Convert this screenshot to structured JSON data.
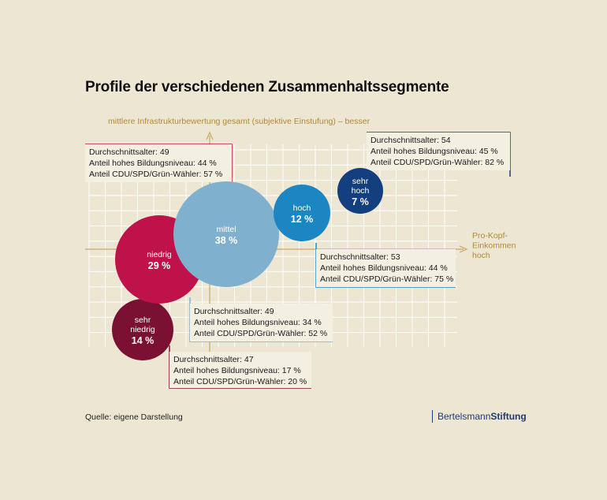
{
  "title": "Profile der verschiedenen Zusammenhaltssegmente",
  "source": "Quelle: eigene Darstellung",
  "brand": {
    "part1": "Bertelsmann",
    "part2": "Stiftung"
  },
  "colors": {
    "background": "#ece6d3",
    "grid": "#ffffff",
    "axis": "#c9a765",
    "axis_text": "#b08a3a",
    "sehr_niedrig": "#7a1133",
    "niedrig": "#c0124a",
    "mittel": "#7fb1cf",
    "hoch": "#1b86c2",
    "sehr_hoch": "#143f7e"
  },
  "chart_data": {
    "type": "scatter",
    "title": "Profile der verschiedenen Zusammenhaltssegmente",
    "xlabel": "Pro-Kopf-Einkommen hoch",
    "ylabel": "mittlere Infrastrukturbewertung gesamt (subjektive Einstufung) – besser",
    "grid": true,
    "segments": [
      {
        "label": "sehr niedrig",
        "value": "14 %",
        "share": 14,
        "info": [
          "Durchschnittsalter: 47",
          "Anteil hohes Bildungsniveau: 17 %",
          "Anteil CDU/SPD/Grün-Wähler: 20 %"
        ]
      },
      {
        "label": "niedrig",
        "value": "29 %",
        "share": 29,
        "info": [
          "Durchschnittsalter: 49",
          "Anteil hohes Bildungsniveau: 44 %",
          "Anteil CDU/SPD/Grün-Wähler: 57 %"
        ]
      },
      {
        "label": "mittel",
        "value": "38 %",
        "share": 38,
        "info": [
          "Durchschnittsalter: 49",
          "Anteil hohes Bildungsniveau: 34 %",
          "Anteil CDU/SPD/Grün-Wähler: 52 %"
        ]
      },
      {
        "label": "hoch",
        "value": "12 %",
        "share": 12,
        "info": [
          "Durchschnittsalter: 53",
          "Anteil hohes Bildungsniveau: 44 %",
          "Anteil CDU/SPD/Grün-Wähler: 75 %"
        ]
      },
      {
        "label": "sehr hoch",
        "value": "7 %",
        "share": 7,
        "info": [
          "Durchschnittsalter: 54",
          "Anteil hohes Bildungsniveau: 45 %",
          "Anteil CDU/SPD/Grün-Wähler: 82 %"
        ]
      }
    ]
  }
}
